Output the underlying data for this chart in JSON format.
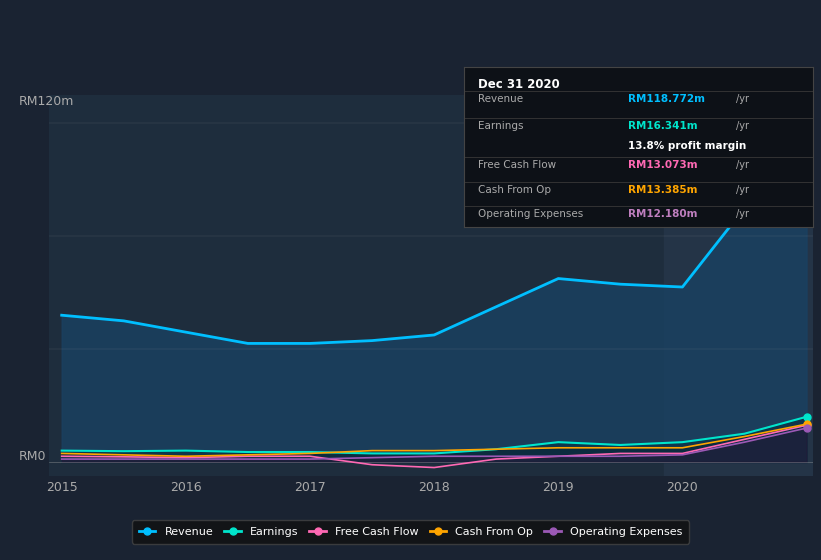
{
  "bg_color": "#1a2332",
  "chart_bg_color": "#1e2d3d",
  "highlight_bg": "#243447",
  "ylabel_top": "RM120m",
  "ylabel_bottom": "RM0",
  "x_years": [
    2015,
    2016,
    2017,
    2018,
    2019,
    2020
  ],
  "revenue_color": "#00bfff",
  "earnings_color": "#00e5cc",
  "fcf_color": "#ff69b4",
  "cashfromop_color": "#ffa500",
  "opex_color": "#9b59b6",
  "info_box": {
    "title": "Dec 31 2020",
    "revenue_label": "Revenue",
    "revenue_value": "RM118.772m",
    "revenue_color": "#00bfff",
    "earnings_label": "Earnings",
    "earnings_value": "RM16.341m",
    "earnings_color": "#00e5cc",
    "margin_text": "13.8% profit margin",
    "fcf_label": "Free Cash Flow",
    "fcf_value": "RM13.073m",
    "fcf_color": "#ff69b4",
    "cashop_label": "Cash From Op",
    "cashop_value": "RM13.385m",
    "cashop_color": "#ffa500",
    "opex_label": "Operating Expenses",
    "opex_value": "RM12.180m",
    "opex_color": "#bf7fbf"
  },
  "x_data": [
    2015.0,
    2015.5,
    2016.0,
    2016.5,
    2017.0,
    2017.5,
    2018.0,
    2018.5,
    2019.0,
    2019.5,
    2020.0,
    2020.5,
    2021.0
  ],
  "revenue_data": [
    52,
    50,
    46,
    42,
    42,
    43,
    45,
    55,
    65,
    63,
    62,
    90,
    119
  ],
  "earnings_data": [
    4,
    3.8,
    4,
    3.5,
    3.5,
    3,
    3,
    4.5,
    7,
    6,
    7,
    10,
    16
  ],
  "fcf_data": [
    2,
    1.8,
    1.5,
    2,
    2,
    -1,
    -2,
    1,
    2,
    3,
    3,
    8,
    13
  ],
  "cashfromop_data": [
    3,
    2.5,
    2,
    2.5,
    3,
    4,
    4,
    4.5,
    5,
    5,
    5,
    9,
    13.4
  ],
  "opex_data": [
    1,
    1,
    1,
    1,
    1,
    1.5,
    2,
    2,
    2,
    2,
    2.5,
    7,
    12
  ],
  "legend_entries": [
    "Revenue",
    "Earnings",
    "Free Cash Flow",
    "Cash From Op",
    "Operating Expenses"
  ],
  "legend_colors": [
    "#00bfff",
    "#00e5cc",
    "#ff69b4",
    "#ffa500",
    "#9b59b6"
  ]
}
